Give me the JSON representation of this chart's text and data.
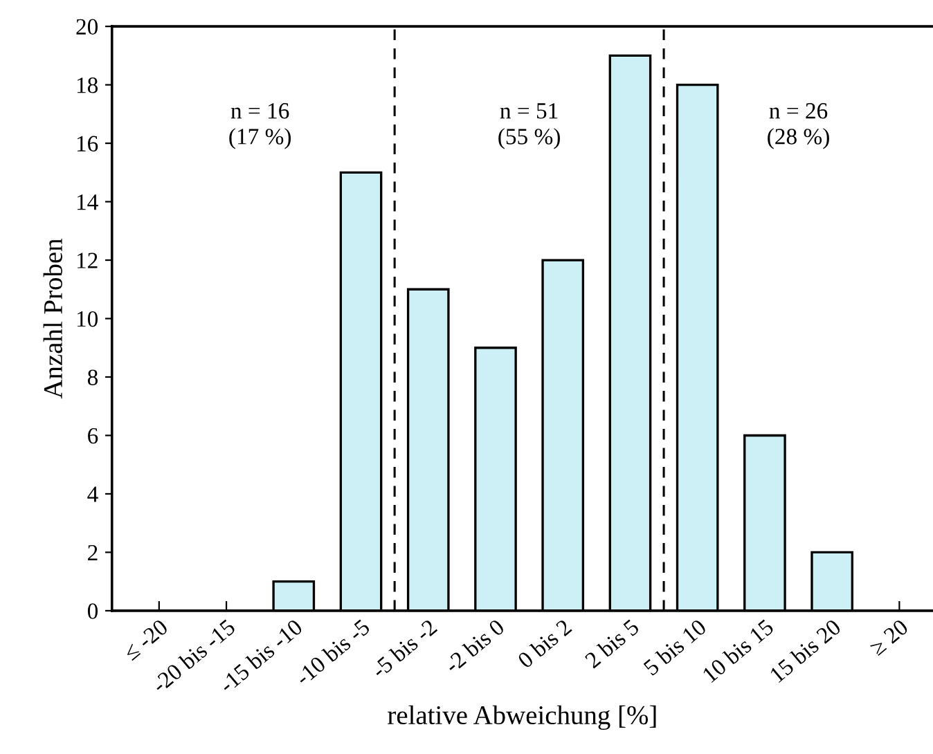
{
  "chart_data": {
    "type": "bar",
    "xlabel": "relative Abweichung [%]",
    "ylabel": "Anzahl Proben",
    "categories": [
      "≤ -20",
      "-20 bis -15",
      "-15 bis -10",
      "-10 bis -5",
      "-5 bis -2",
      "-2 bis 0",
      "0 bis 2",
      "2 bis 5",
      "5 bis 10",
      "10 bis 15",
      "15 bis 20",
      "≥ 20"
    ],
    "values": [
      0,
      0,
      1,
      15,
      11,
      9,
      12,
      19,
      18,
      6,
      2,
      0
    ],
    "color": "#cdf0f7",
    "ylim": [
      0,
      20
    ],
    "yticks": [
      0,
      2,
      4,
      6,
      8,
      10,
      12,
      14,
      16,
      18,
      20
    ],
    "grid": false,
    "annotations": [
      "n = 16\n(17 %)",
      "n = 51\n(55 %)",
      "n = 26\n(28 %)"
    ]
  }
}
